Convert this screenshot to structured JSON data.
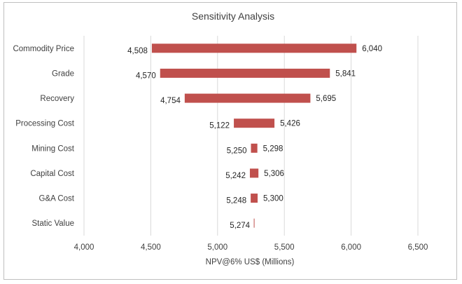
{
  "chart_data": {
    "type": "bar",
    "subtype": "tornado",
    "title": "Sensitivity Analysis",
    "xlabel": "NPV@6% US$ (Millions)",
    "ylabel": "",
    "xlim": [
      4000,
      6500
    ],
    "xticks": [
      4000,
      4500,
      5000,
      5500,
      6000,
      6500
    ],
    "xtick_labels": [
      "4,000",
      "4,500",
      "5,000",
      "5,500",
      "6,000",
      "6,500"
    ],
    "grid": true,
    "color": "#c0504d",
    "categories": [
      "Commodity Price",
      "Grade",
      "Recovery",
      "Processing Cost",
      "Mining Cost",
      "Capital Cost",
      "G&A Cost",
      "Static Value"
    ],
    "low": [
      4508,
      4570,
      4754,
      5122,
      5250,
      5242,
      5248,
      5274
    ],
    "high": [
      6040,
      5841,
      5695,
      5426,
      5298,
      5306,
      5300,
      5274
    ],
    "low_labels": [
      "4,508",
      "4,570",
      "4,754",
      "5,122",
      "5,250",
      "5,242",
      "5,248",
      "5,274"
    ],
    "high_labels": [
      "6,040",
      "5,841",
      "5,695",
      "5,426",
      "5,298",
      "5,306",
      "5,300",
      ""
    ]
  }
}
